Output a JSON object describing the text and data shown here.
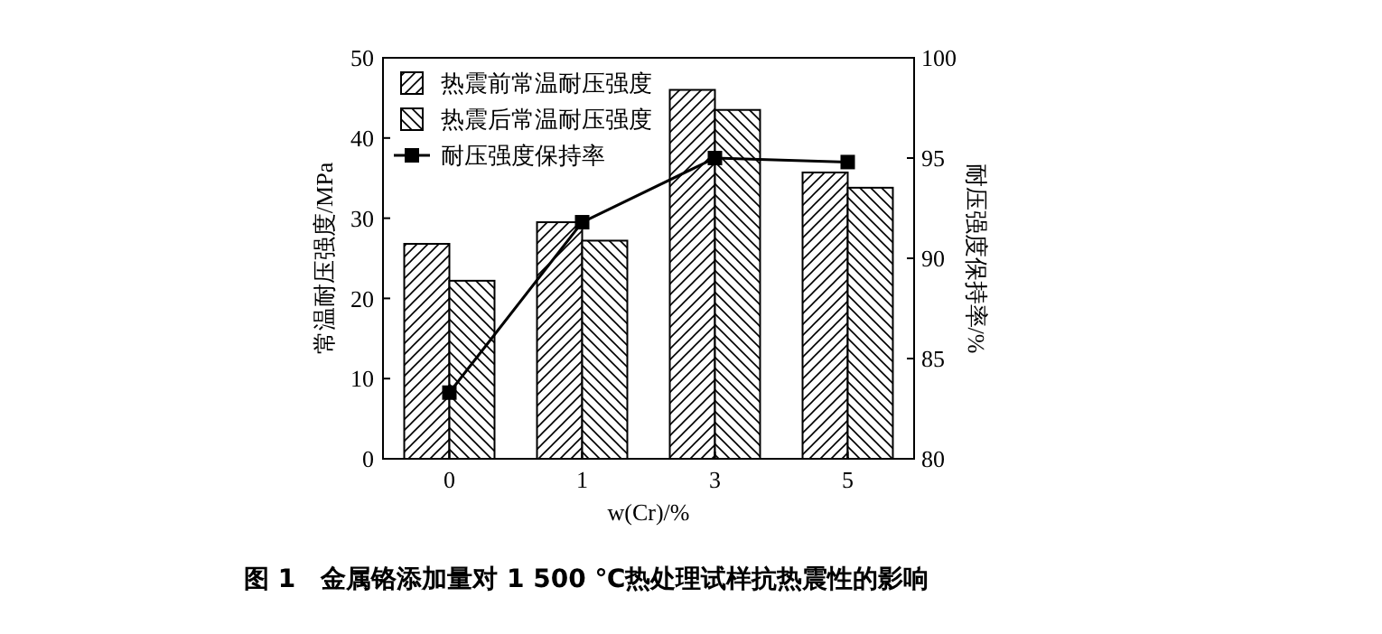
{
  "chart_data": {
    "type": "bar",
    "title": "图 1　金属铬添加量对 1 500 ℃热处理试样抗热震性的影响",
    "xlabel": "w(Cr)/%",
    "ylabel": "常温耐压强度/MPa",
    "y2label": "耐压强度保持率/%",
    "categories": [
      "0",
      "1",
      "3",
      "5"
    ],
    "series": [
      {
        "name": "热震前常温耐压强度",
        "color": "#000000",
        "values": [
          26.8,
          29.5,
          46.0,
          35.7
        ]
      },
      {
        "name": "热震后常温耐压强度",
        "color": "#000000",
        "values": [
          22.2,
          27.2,
          43.5,
          33.8
        ]
      },
      {
        "name": "耐压强度保持率",
        "type": "line",
        "axis": "y2",
        "color": "#000000",
        "marker": "square",
        "values": [
          83.3,
          91.8,
          95.0,
          94.8
        ]
      }
    ],
    "ylim": [
      0,
      50
    ],
    "yticks": [
      0,
      10,
      20,
      30,
      40,
      50
    ],
    "y2lim": [
      80,
      100
    ],
    "y2ticks": [
      80,
      85,
      90,
      95,
      100
    ],
    "legend": "top left",
    "grid": false
  }
}
